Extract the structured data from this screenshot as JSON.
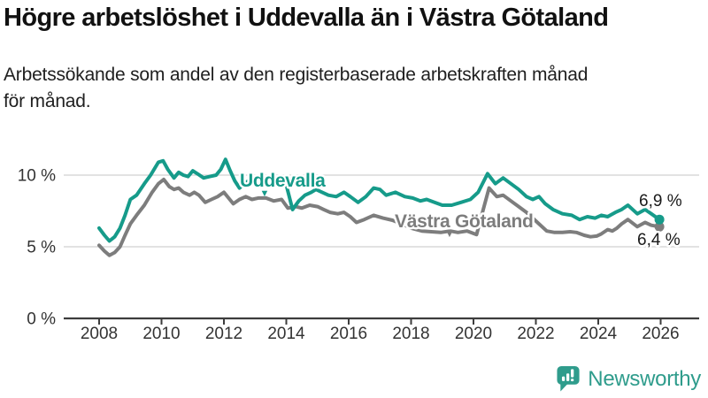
{
  "header": {
    "title": "Högre arbetslöshet i Uddevalla än i Västra Götaland",
    "subtitle_lines": [
      "Arbetssökande som andel av den registerbaserade arbetskraften månad",
      "för månad."
    ]
  },
  "colors": {
    "accent_teal": "#169b8a",
    "series_gray": "#7d7d7d",
    "axis": "#3d3d3d",
    "grid": "#d9d9d9",
    "text": "#1a1a1a",
    "brand_teal": "#2f9c8c"
  },
  "icons": {
    "brand_logo": "bar-chart-speech-bubble-icon"
  },
  "footer": {
    "brand": "Newsworthy"
  },
  "chart_data": {
    "type": "line",
    "title": "Högre arbetslöshet i Uddevalla än i Västra Götaland",
    "xlabel": "",
    "ylabel": "",
    "grid": "horizontal",
    "legend": "inline-labels",
    "x_unit": "year (monthly data)",
    "y_unit": "percent",
    "xlim": [
      2007.8,
      2027.3
    ],
    "ylim": [
      0,
      11.5
    ],
    "x_ticks": [
      2008,
      2010,
      2012,
      2014,
      2016,
      2018,
      2020,
      2022,
      2024,
      2026
    ],
    "y_ticks": [
      {
        "value": 0,
        "label": "0 %"
      },
      {
        "value": 5,
        "label": "5 %"
      },
      {
        "value": 10,
        "label": "10 %"
      }
    ],
    "series": [
      {
        "name": "Västra Götaland",
        "color": "#7d7d7d",
        "end_label": "6,4 %",
        "end_value": 6.4,
        "points": [
          [
            2008.0,
            5.1
          ],
          [
            2008.17,
            4.7
          ],
          [
            2008.33,
            4.4
          ],
          [
            2008.5,
            4.6
          ],
          [
            2008.67,
            5.0
          ],
          [
            2008.83,
            5.8
          ],
          [
            2009.0,
            6.6
          ],
          [
            2009.2,
            7.2
          ],
          [
            2009.45,
            7.9
          ],
          [
            2009.7,
            8.8
          ],
          [
            2009.9,
            9.4
          ],
          [
            2010.07,
            9.7
          ],
          [
            2010.25,
            9.2
          ],
          [
            2010.4,
            9.0
          ],
          [
            2010.55,
            9.1
          ],
          [
            2010.7,
            8.8
          ],
          [
            2010.9,
            8.6
          ],
          [
            2011.05,
            8.8
          ],
          [
            2011.2,
            8.6
          ],
          [
            2011.4,
            8.1
          ],
          [
            2011.6,
            8.3
          ],
          [
            2011.8,
            8.5
          ],
          [
            2012.0,
            8.8
          ],
          [
            2012.15,
            8.4
          ],
          [
            2012.3,
            8.0
          ],
          [
            2012.5,
            8.3
          ],
          [
            2012.7,
            8.5
          ],
          [
            2012.9,
            8.3
          ],
          [
            2013.1,
            8.4
          ],
          [
            2013.35,
            8.4
          ],
          [
            2013.6,
            8.2
          ],
          [
            2013.85,
            8.3
          ],
          [
            2014.05,
            7.7
          ],
          [
            2014.3,
            7.8
          ],
          [
            2014.5,
            7.7
          ],
          [
            2014.75,
            7.9
          ],
          [
            2015.0,
            7.8
          ],
          [
            2015.2,
            7.6
          ],
          [
            2015.4,
            7.4
          ],
          [
            2015.65,
            7.3
          ],
          [
            2015.85,
            7.4
          ],
          [
            2016.05,
            7.1
          ],
          [
            2016.25,
            6.7
          ],
          [
            2016.5,
            6.9
          ],
          [
            2016.8,
            7.2
          ],
          [
            2017.1,
            7.0
          ],
          [
            2017.4,
            6.85
          ],
          [
            2017.7,
            6.6
          ],
          [
            2018.0,
            6.3
          ],
          [
            2018.35,
            6.1
          ],
          [
            2018.65,
            6.05
          ],
          [
            2018.95,
            6.0
          ],
          [
            2019.25,
            6.1
          ],
          [
            2019.5,
            6.0
          ],
          [
            2019.8,
            6.1
          ],
          [
            2020.1,
            5.85
          ],
          [
            2020.3,
            7.5
          ],
          [
            2020.5,
            9.1
          ],
          [
            2020.75,
            8.5
          ],
          [
            2020.95,
            8.6
          ],
          [
            2021.2,
            8.2
          ],
          [
            2021.45,
            7.8
          ],
          [
            2021.7,
            7.4
          ],
          [
            2021.9,
            7.0
          ],
          [
            2022.1,
            6.6
          ],
          [
            2022.35,
            6.1
          ],
          [
            2022.6,
            6.0
          ],
          [
            2022.85,
            6.0
          ],
          [
            2023.1,
            6.05
          ],
          [
            2023.3,
            6.0
          ],
          [
            2023.55,
            5.8
          ],
          [
            2023.75,
            5.7
          ],
          [
            2023.95,
            5.75
          ],
          [
            2024.1,
            5.9
          ],
          [
            2024.3,
            6.2
          ],
          [
            2024.45,
            6.1
          ],
          [
            2024.6,
            6.3
          ],
          [
            2024.75,
            6.6
          ],
          [
            2024.95,
            6.9
          ],
          [
            2025.25,
            6.4
          ],
          [
            2025.5,
            6.7
          ],
          [
            2025.7,
            6.5
          ],
          [
            2025.96,
            6.4
          ]
        ]
      },
      {
        "name": "Uddevalla",
        "color": "#169b8a",
        "end_label": "6,9 %",
        "end_value": 6.9,
        "points": [
          [
            2008.0,
            6.3
          ],
          [
            2008.17,
            5.8
          ],
          [
            2008.33,
            5.4
          ],
          [
            2008.5,
            5.7
          ],
          [
            2008.67,
            6.3
          ],
          [
            2008.83,
            7.2
          ],
          [
            2009.0,
            8.3
          ],
          [
            2009.2,
            8.6
          ],
          [
            2009.45,
            9.4
          ],
          [
            2009.65,
            10.0
          ],
          [
            2009.9,
            10.9
          ],
          [
            2010.05,
            11.0
          ],
          [
            2010.2,
            10.4
          ],
          [
            2010.4,
            9.8
          ],
          [
            2010.55,
            10.2
          ],
          [
            2010.7,
            10.0
          ],
          [
            2010.85,
            9.9
          ],
          [
            2011.0,
            10.3
          ],
          [
            2011.15,
            10.1
          ],
          [
            2011.35,
            9.8
          ],
          [
            2011.55,
            9.9
          ],
          [
            2011.75,
            10.0
          ],
          [
            2011.9,
            10.4
          ],
          [
            2012.05,
            11.1
          ],
          [
            2012.2,
            10.3
          ],
          [
            2012.35,
            9.6
          ],
          [
            2012.5,
            9.1
          ],
          [
            2012.65,
            9.4
          ],
          [
            2012.85,
            9.7
          ],
          [
            2013.05,
            9.9
          ],
          [
            2013.25,
            9.6
          ],
          [
            2013.45,
            9.4
          ],
          [
            2013.65,
            9.5
          ],
          [
            2013.85,
            9.8
          ],
          [
            2014.0,
            9.3
          ],
          [
            2014.2,
            7.6
          ],
          [
            2014.4,
            8.2
          ],
          [
            2014.6,
            8.6
          ],
          [
            2014.8,
            8.8
          ],
          [
            2014.95,
            9.0
          ],
          [
            2015.15,
            8.8
          ],
          [
            2015.35,
            8.6
          ],
          [
            2015.6,
            8.5
          ],
          [
            2015.85,
            8.8
          ],
          [
            2016.05,
            8.5
          ],
          [
            2016.3,
            8.1
          ],
          [
            2016.55,
            8.5
          ],
          [
            2016.8,
            9.1
          ],
          [
            2017.0,
            9.0
          ],
          [
            2017.2,
            8.6
          ],
          [
            2017.5,
            8.8
          ],
          [
            2017.8,
            8.5
          ],
          [
            2018.05,
            8.4
          ],
          [
            2018.3,
            8.2
          ],
          [
            2018.5,
            8.3
          ],
          [
            2018.75,
            8.1
          ],
          [
            2019.0,
            7.9
          ],
          [
            2019.3,
            7.9
          ],
          [
            2019.6,
            8.1
          ],
          [
            2019.9,
            8.3
          ],
          [
            2020.15,
            8.8
          ],
          [
            2020.45,
            10.1
          ],
          [
            2020.7,
            9.4
          ],
          [
            2020.95,
            9.8
          ],
          [
            2021.2,
            9.4
          ],
          [
            2021.45,
            9.0
          ],
          [
            2021.7,
            8.5
          ],
          [
            2021.9,
            8.3
          ],
          [
            2022.1,
            8.5
          ],
          [
            2022.3,
            8.0
          ],
          [
            2022.55,
            7.6
          ],
          [
            2022.85,
            7.3
          ],
          [
            2023.15,
            7.2
          ],
          [
            2023.4,
            6.9
          ],
          [
            2023.65,
            7.1
          ],
          [
            2023.9,
            7.0
          ],
          [
            2024.1,
            7.2
          ],
          [
            2024.3,
            7.1
          ],
          [
            2024.55,
            7.4
          ],
          [
            2024.75,
            7.6
          ],
          [
            2024.95,
            7.9
          ],
          [
            2025.25,
            7.3
          ],
          [
            2025.5,
            7.6
          ],
          [
            2025.7,
            7.3
          ],
          [
            2025.96,
            6.9
          ]
        ]
      }
    ]
  }
}
